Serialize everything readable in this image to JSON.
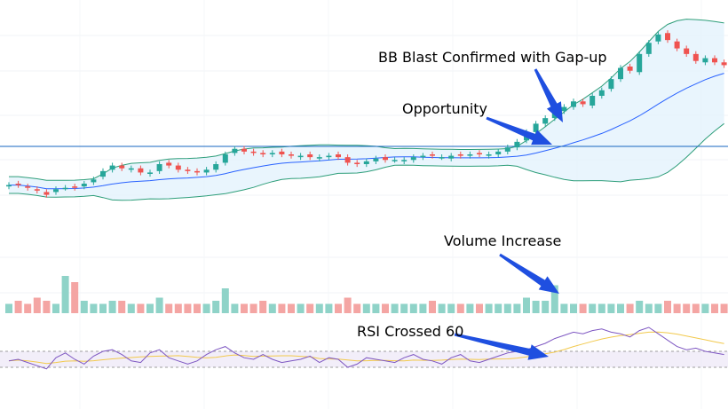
{
  "chart_data": [
    {
      "type": "candlestick",
      "panel": "price",
      "indicators": [
        "Bollinger Bands",
        "Horizontal level"
      ],
      "title": "",
      "xlabel": "",
      "ylabel": "",
      "ylim": [
        0,
        100
      ],
      "horizontal_level": 59,
      "close": [
        40,
        40,
        38,
        36,
        33,
        37,
        38,
        38,
        41,
        44,
        50,
        54,
        52,
        52,
        49,
        49,
        55,
        54,
        51,
        50,
        49,
        51,
        55,
        62,
        66,
        64,
        63,
        62,
        63,
        62,
        61,
        61,
        60,
        60,
        61,
        60,
        56,
        55,
        57,
        59,
        58,
        58,
        58,
        60,
        61,
        61,
        60,
        61,
        61,
        62,
        62,
        62,
        64,
        67,
        71,
        78,
        84,
        88,
        93,
        96,
        100,
        98,
        104,
        108,
        116,
        124,
        122,
        134,
        142,
        148,
        144,
        138,
        134,
        129,
        131,
        128,
        126
      ],
      "open": [
        39,
        41,
        39,
        37,
        35,
        35,
        38,
        39,
        39,
        42,
        46,
        51,
        54,
        51,
        52,
        48,
        50,
        56,
        54,
        51,
        50,
        49,
        51,
        56,
        63,
        66,
        64,
        63,
        62,
        64,
        62,
        60,
        62,
        59,
        60,
        62,
        60,
        56,
        55,
        57,
        60,
        58,
        57,
        58,
        60,
        62,
        60,
        59,
        62,
        61,
        63,
        61,
        62,
        64,
        67,
        72,
        78,
        84,
        88,
        93,
        96,
        100,
        97,
        104,
        109,
        116,
        125,
        121,
        134,
        143,
        149,
        143,
        138,
        134,
        128,
        131,
        128
      ],
      "annotations": [
        {
          "label": "BB Blast Confirmed with Gap-up",
          "target_index": 59
        },
        {
          "label": "Opportunity",
          "target_index": 58
        }
      ]
    },
    {
      "type": "bar",
      "panel": "volume",
      "values": [
        3,
        4,
        3,
        5,
        4,
        3,
        12,
        10,
        4,
        3,
        3,
        4,
        4,
        3,
        3,
        3,
        5,
        3,
        3,
        3,
        3,
        3,
        4,
        8,
        3,
        3,
        3,
        4,
        3,
        3,
        3,
        3,
        3,
        3,
        3,
        3,
        5,
        3,
        3,
        3,
        3,
        3,
        3,
        3,
        3,
        4,
        3,
        3,
        3,
        3,
        3,
        3,
        3,
        3,
        3,
        5,
        4,
        4,
        9,
        3,
        3,
        3,
        3,
        3,
        3,
        3,
        3,
        4,
        3,
        3,
        4,
        3,
        3,
        3,
        3,
        3,
        3
      ],
      "annotations": [
        {
          "label": "Volume Increase",
          "target_index": 58
        }
      ]
    },
    {
      "type": "line",
      "panel": "rsi",
      "series_values": [
        48,
        50,
        46,
        42,
        38,
        52,
        58,
        50,
        44,
        54,
        60,
        62,
        56,
        48,
        46,
        58,
        62,
        52,
        48,
        44,
        48,
        56,
        62,
        66,
        58,
        52,
        50,
        56,
        50,
        46,
        48,
        50,
        54,
        46,
        52,
        50,
        40,
        44,
        52,
        50,
        48,
        46,
        52,
        56,
        50,
        48,
        44,
        52,
        56,
        48,
        46,
        50,
        54,
        58,
        60,
        62,
        66,
        70,
        76,
        80,
        84,
        82,
        86,
        88,
        84,
        82,
        78,
        86,
        90,
        82,
        74,
        66,
        62,
        64,
        60,
        58,
        56
      ],
      "ylim": [
        0,
        100
      ],
      "bands": [
        40,
        60
      ],
      "annotations": [
        {
          "label": "RSI Crossed 60",
          "target_index": 57
        }
      ]
    }
  ],
  "colors": {
    "up": "#26a69a",
    "down": "#ef5350",
    "bb_fill": "#e3f2fd",
    "bb_band": "#2e9e7a",
    "bb_basis": "#2962ff",
    "level": "#1565c0",
    "arrow": "#1f4fe0",
    "rsi_line": "#7e57c2",
    "rsi_ma": "#f2c94c",
    "rsi_band_fill": "#ede7f6"
  }
}
